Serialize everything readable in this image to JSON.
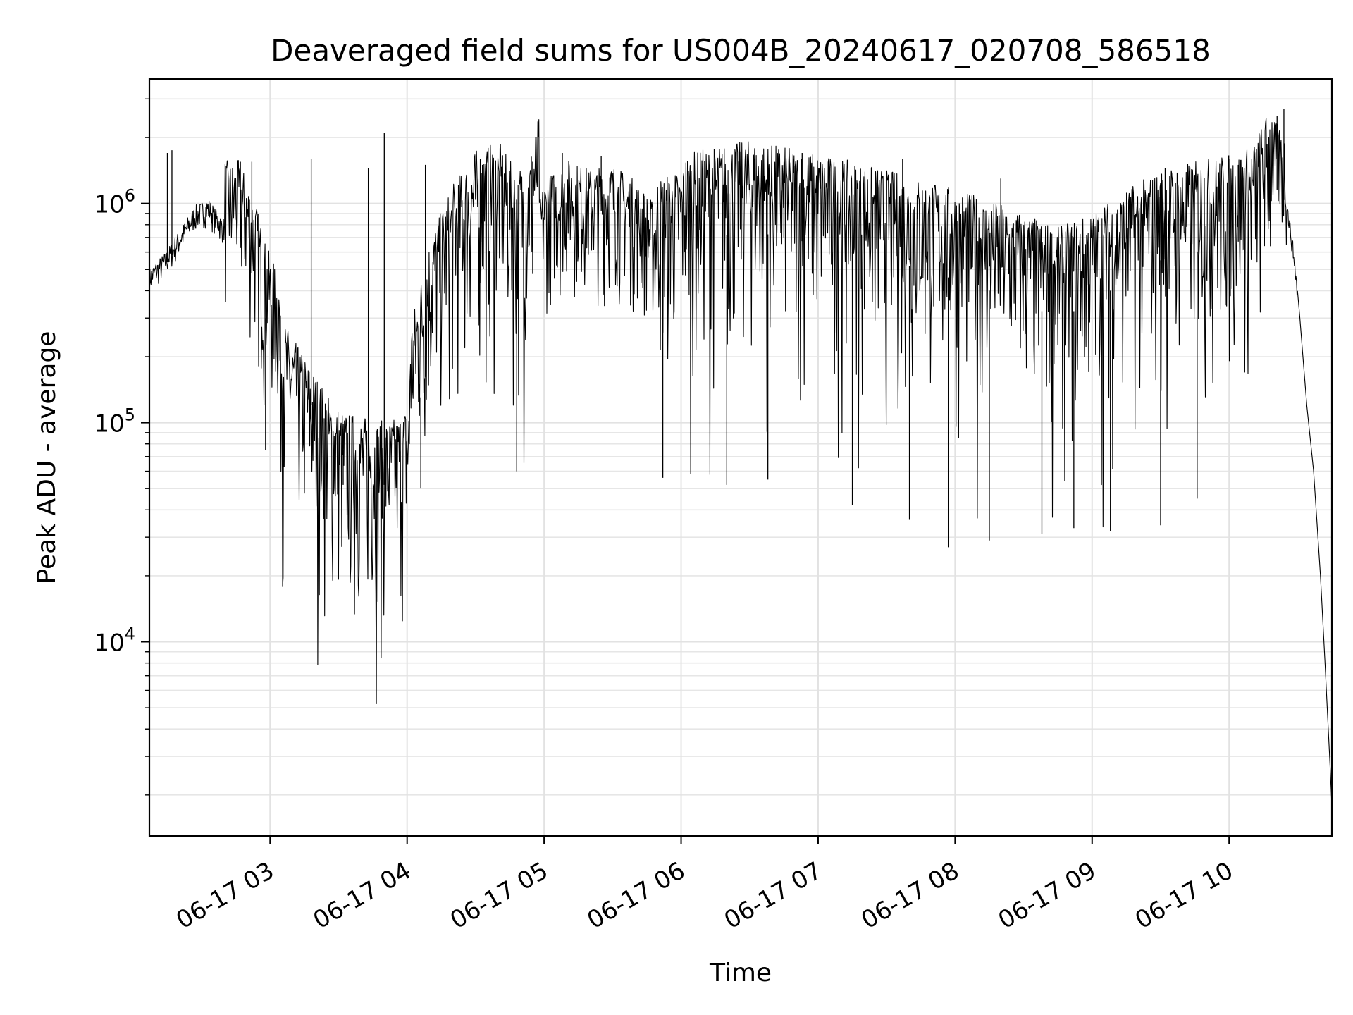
{
  "chart_data": {
    "type": "line",
    "title": "Deaveraged field sums for US004B_20240617_020708_586518",
    "xlabel": "Time",
    "ylabel": "Peak ADU - average",
    "xlim": [
      "2024-06-17 02:07:08",
      "2024-06-17 10:45:00"
    ],
    "ylim": [
      1300,
      3700000
    ],
    "yscale": "log",
    "grid": true,
    "line_color": "#000000",
    "x_ticks": [
      {
        "t": "2024-06-17 03:00",
        "label": "06-17 03"
      },
      {
        "t": "2024-06-17 04:00",
        "label": "06-17 04"
      },
      {
        "t": "2024-06-17 05:00",
        "label": "06-17 05"
      },
      {
        "t": "2024-06-17 06:00",
        "label": "06-17 06"
      },
      {
        "t": "2024-06-17 07:00",
        "label": "06-17 07"
      },
      {
        "t": "2024-06-17 08:00",
        "label": "06-17 08"
      },
      {
        "t": "2024-06-17 09:00",
        "label": "06-17 09"
      },
      {
        "t": "2024-06-17 10:00",
        "label": "06-17 10"
      }
    ],
    "y_ticks": [
      {
        "value": 10000,
        "base": "10",
        "exp": "4"
      },
      {
        "value": 100000,
        "base": "10",
        "exp": "5"
      },
      {
        "value": 1000000,
        "base": "10",
        "exp": "6"
      }
    ],
    "series": [
      {
        "points": [
          [
            "2024-06-17 02:07",
            440000
          ],
          [
            "2024-06-17 02:14",
            520000
          ],
          [
            "2024-06-17 02:20",
            650000
          ],
          [
            "2024-06-17 02:27",
            850000
          ],
          [
            "2024-06-17 02:33",
            920000
          ],
          [
            "2024-06-17 02:37",
            800000
          ],
          [
            "2024-06-17 02:42",
            700000
          ],
          [
            "2024-06-17 02:46",
            720000
          ],
          [
            "2024-06-17 02:50",
            600000
          ],
          [
            "2024-06-17 02:54",
            450000
          ],
          [
            "2024-06-17 02:58",
            300000
          ],
          [
            "2024-06-17 03:05",
            200000
          ],
          [
            "2024-06-17 03:12",
            150000
          ],
          [
            "2024-06-17 03:18",
            120000
          ],
          [
            "2024-06-17 03:25",
            90000
          ],
          [
            "2024-06-17 03:32",
            75000
          ],
          [
            "2024-06-17 03:40",
            72000
          ],
          [
            "2024-06-17 03:48",
            68000
          ],
          [
            "2024-06-17 03:55",
            70000
          ],
          [
            "2024-06-17 04:02",
            85000
          ],
          [
            "2024-06-17 04:10",
            200000
          ],
          [
            "2024-06-17 04:20",
            350000
          ],
          [
            "2024-06-17 04:30",
            500000
          ],
          [
            "2024-06-17 04:40",
            550000
          ],
          [
            "2024-06-17 04:48",
            400000
          ],
          [
            "2024-06-17 04:52",
            350000
          ],
          [
            "2024-06-17 05:00",
            800000
          ],
          [
            "2024-06-17 05:10",
            1000000
          ],
          [
            "2024-06-17 05:20",
            900000
          ],
          [
            "2024-06-17 05:30",
            950000
          ],
          [
            "2024-06-17 05:40",
            800000
          ],
          [
            "2024-06-17 05:50",
            600000
          ],
          [
            "2024-06-17 06:00",
            650000
          ],
          [
            "2024-06-17 06:15",
            700000
          ],
          [
            "2024-06-17 06:30",
            750000
          ],
          [
            "2024-06-17 06:45",
            700000
          ],
          [
            "2024-06-17 07:00",
            650000
          ],
          [
            "2024-06-17 07:15",
            600000
          ],
          [
            "2024-06-17 07:30",
            550000
          ],
          [
            "2024-06-17 07:45",
            500000
          ],
          [
            "2024-06-17 08:00",
            450000
          ],
          [
            "2024-06-17 08:15",
            400000
          ],
          [
            "2024-06-17 08:30",
            350000
          ],
          [
            "2024-06-17 08:45",
            300000
          ],
          [
            "2024-06-17 09:00",
            350000
          ],
          [
            "2024-06-17 09:15",
            450000
          ],
          [
            "2024-06-17 09:30",
            550000
          ],
          [
            "2024-06-17 09:45",
            600000
          ],
          [
            "2024-06-17 10:00",
            650000
          ],
          [
            "2024-06-17 10:10",
            700000
          ],
          [
            "2024-06-17 10:20",
            1200000
          ],
          [
            "2024-06-17 10:25",
            1000000
          ],
          [
            "2024-06-17 10:28",
            600000
          ],
          [
            "2024-06-17 10:31",
            300000
          ],
          [
            "2024-06-17 10:34",
            120000
          ],
          [
            "2024-06-17 10:37",
            60000
          ],
          [
            "2024-06-17 10:40",
            20000
          ],
          [
            "2024-06-17 10:42",
            8000
          ],
          [
            "2024-06-17 10:44",
            3000
          ],
          [
            "2024-06-17 10:45",
            1800
          ]
        ],
        "spikes": [
          [
            "2024-06-17 02:15",
            1700000
          ],
          [
            "2024-06-17 02:17",
            1750000
          ],
          [
            "2024-06-17 02:47",
            1550000
          ],
          [
            "2024-06-17 02:52",
            1550000
          ],
          [
            "2024-06-17 03:18",
            1600000
          ],
          [
            "2024-06-17 03:43",
            1450000
          ],
          [
            "2024-06-17 03:50",
            2100000
          ],
          [
            "2024-06-17 04:08",
            1500000
          ],
          [
            "2024-06-17 04:33",
            1500000
          ],
          [
            "2024-06-17 04:55",
            1550000
          ],
          [
            "2024-06-17 05:08",
            1700000
          ],
          [
            "2024-06-17 05:25",
            1650000
          ],
          [
            "2024-06-17 06:45",
            1500000
          ],
          [
            "2024-06-17 06:53",
            1700000
          ],
          [
            "2024-06-17 07:37",
            1600000
          ],
          [
            "2024-06-17 08:20",
            1300000
          ],
          [
            "2024-06-17 09:32",
            1450000
          ],
          [
            "2024-06-17 10:04",
            1500000
          ],
          [
            "2024-06-17 10:21",
            2500000
          ],
          [
            "2024-06-17 10:24",
            2700000
          ]
        ],
        "dips": [
          [
            "2024-06-17 02:58",
            75000
          ],
          [
            "2024-06-17 03:32",
            52000
          ],
          [
            "2024-06-17 03:50",
            52000
          ],
          [
            "2024-06-17 03:57",
            42000
          ],
          [
            "2024-06-17 04:06",
            50000
          ],
          [
            "2024-06-17 04:48",
            60000
          ],
          [
            "2024-06-17 05:52",
            56000
          ],
          [
            "2024-06-17 06:20",
            52000
          ],
          [
            "2024-06-17 06:38",
            55000
          ],
          [
            "2024-06-17 07:15",
            42000
          ],
          [
            "2024-06-17 07:40",
            36000
          ],
          [
            "2024-06-17 07:57",
            27000
          ],
          [
            "2024-06-17 08:15",
            29000
          ],
          [
            "2024-06-17 08:38",
            31000
          ],
          [
            "2024-06-17 08:52",
            33000
          ],
          [
            "2024-06-17 09:08",
            32000
          ],
          [
            "2024-06-17 09:30",
            34000
          ],
          [
            "2024-06-17 09:46",
            45000
          ]
        ]
      }
    ]
  }
}
